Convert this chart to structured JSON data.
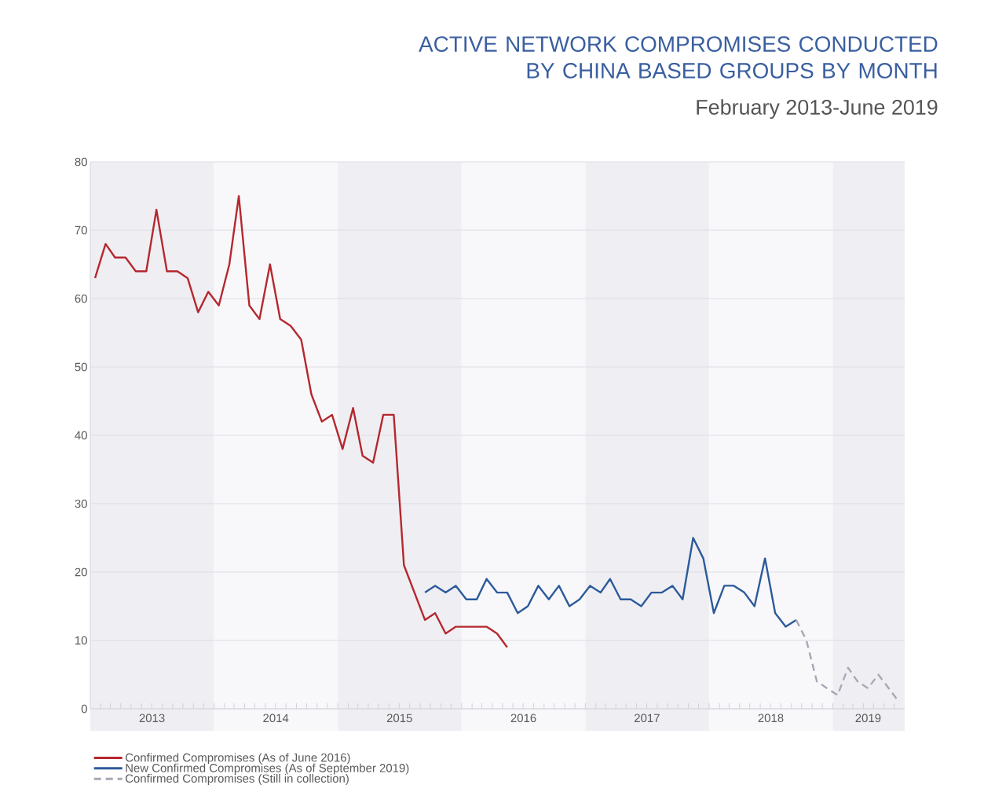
{
  "chart_data": {
    "type": "line",
    "title": "ACTIVE NETWORK COMPROMISES CONDUCTED BY CHINA BASED GROUPS BY MONTH",
    "subtitle": "February 2013-June 2019",
    "x": [
      "2013-01-15",
      "2013-02-15",
      "2013-03-15",
      "2013-04-15",
      "2013-05-15",
      "2013-06-15",
      "2013-07-15",
      "2013-08-15",
      "2013-09-15",
      "2013-10-15",
      "2013-11-15",
      "2013-12-15",
      "2014-01-15",
      "2014-02-15",
      "2014-03-15",
      "2014-04-15",
      "2014-05-15",
      "2014-06-15",
      "2014-07-15",
      "2014-08-15",
      "2014-09-15",
      "2014-10-15",
      "2014-11-15",
      "2014-12-15",
      "2015-01-15",
      "2015-02-15",
      "2015-03-15",
      "2015-04-15",
      "2015-05-15",
      "2015-06-15",
      "2015-07-15",
      "2015-08-15",
      "2015-09-15",
      "2015-10-15",
      "2015-11-15",
      "2015-12-15",
      "2016-01-15",
      "2016-02-15",
      "2016-03-15",
      "2016-04-15",
      "2016-05-15",
      "2016-06-15",
      "2016-07-15",
      "2016-08-15",
      "2016-09-15",
      "2016-10-15",
      "2016-11-15",
      "2016-12-15",
      "2017-01-15",
      "2017-02-15",
      "2017-03-15",
      "2017-04-15",
      "2017-05-15",
      "2017-06-15",
      "2017-07-15",
      "2017-08-15",
      "2017-09-15",
      "2017-10-15",
      "2017-11-15",
      "2017-12-15",
      "2018-01-15",
      "2018-02-15",
      "2018-03-15",
      "2018-04-15",
      "2018-05-15",
      "2018-06-15",
      "2018-07-15",
      "2018-08-15",
      "2018-09-15",
      "2018-10-15",
      "2018-11-15",
      "2018-12-15",
      "2019-01-15",
      "2019-02-15",
      "2019-03-15",
      "2019-04-15",
      "2019-05-15",
      "2019-06-15",
      "2019-07-15"
    ],
    "series": [
      {
        "name": "Confirmed Compromises (As of June 2016)",
        "color": "#b5282e",
        "line_style": "solid",
        "values": [
          63,
          68,
          66,
          66,
          64,
          64,
          73,
          64,
          64,
          63,
          58,
          61,
          59,
          65,
          75,
          59,
          57,
          65,
          57,
          56,
          54,
          46,
          42,
          43,
          38,
          44,
          37,
          36,
          43,
          43,
          21,
          17,
          13,
          14,
          11,
          12,
          12,
          12,
          12,
          11,
          9,
          null,
          null,
          null,
          null,
          null,
          null,
          null,
          null,
          null,
          null,
          null,
          null,
          null,
          null,
          null,
          null,
          null,
          null,
          null,
          null,
          null,
          null,
          null,
          null,
          null,
          null,
          null,
          null,
          null,
          null,
          null,
          null,
          null,
          null,
          null,
          null,
          null,
          null
        ]
      },
      {
        "name": "New Confirmed Compromises (As of September 2019)",
        "color": "#2c5a9a",
        "line_style": "solid",
        "values": [
          null,
          null,
          null,
          null,
          null,
          null,
          null,
          null,
          null,
          null,
          null,
          null,
          null,
          null,
          null,
          null,
          null,
          null,
          null,
          null,
          null,
          null,
          null,
          null,
          null,
          null,
          null,
          null,
          null,
          null,
          null,
          null,
          17,
          18,
          17,
          18,
          16,
          16,
          19,
          17,
          17,
          14,
          15,
          18,
          16,
          18,
          15,
          16,
          18,
          17,
          19,
          16,
          16,
          15,
          17,
          17,
          18,
          16,
          25,
          22,
          14,
          18,
          18,
          17,
          15,
          22,
          14,
          12,
          13,
          null,
          null,
          null,
          null,
          null,
          null,
          null,
          null,
          null,
          null
        ]
      },
      {
        "name": "Confirmed Compromises (Still in collection)",
        "color": "#a7a9b4",
        "line_style": "dashed",
        "values": [
          null,
          null,
          null,
          null,
          null,
          null,
          null,
          null,
          null,
          null,
          null,
          null,
          null,
          null,
          null,
          null,
          null,
          null,
          null,
          null,
          null,
          null,
          null,
          null,
          null,
          null,
          null,
          null,
          null,
          null,
          null,
          null,
          null,
          null,
          null,
          null,
          null,
          null,
          null,
          null,
          null,
          null,
          null,
          null,
          null,
          null,
          null,
          null,
          null,
          null,
          null,
          null,
          null,
          null,
          null,
          null,
          null,
          null,
          null,
          null,
          null,
          null,
          null,
          null,
          null,
          null,
          null,
          null,
          13,
          10,
          4,
          3,
          2,
          6,
          4,
          3,
          5,
          3,
          1
        ]
      }
    ],
    "xlim": [
      "2013-01-01",
      "2019-08-01"
    ],
    "xticks": [
      {
        "value": "2013-02-01",
        "label": null
      },
      {
        "value": "2013-03-01",
        "label": null
      },
      {
        "value": "2013-04-01",
        "label": null
      },
      {
        "value": "2013-05-01",
        "label": null
      },
      {
        "value": "2013-06-01",
        "label": null
      },
      {
        "value": "2013-07-01",
        "label": null
      },
      {
        "value": "2013-08-01",
        "label": null
      },
      {
        "value": "2013-09-01",
        "label": null
      },
      {
        "value": "2013-10-01",
        "label": null
      },
      {
        "value": "2013-11-01",
        "label": null
      },
      {
        "value": "2013-12-01",
        "label": null
      },
      {
        "value": "2014-01-01",
        "label": null
      },
      {
        "value": "2014-02-01",
        "label": null
      },
      {
        "value": "2014-03-01",
        "label": null
      },
      {
        "value": "2014-04-01",
        "label": null
      },
      {
        "value": "2014-05-01",
        "label": null
      },
      {
        "value": "2014-06-01",
        "label": null
      },
      {
        "value": "2014-07-01",
        "label": null
      },
      {
        "value": "2014-08-01",
        "label": null
      },
      {
        "value": "2014-09-01",
        "label": null
      },
      {
        "value": "2014-10-01",
        "label": null
      },
      {
        "value": "2014-11-01",
        "label": null
      },
      {
        "value": "2014-12-01",
        "label": null
      },
      {
        "value": "2015-01-01",
        "label": null
      },
      {
        "value": "2015-02-01",
        "label": null
      },
      {
        "value": "2015-03-01",
        "label": null
      },
      {
        "value": "2015-04-01",
        "label": null
      },
      {
        "value": "2015-05-01",
        "label": null
      },
      {
        "value": "2015-06-01",
        "label": null
      },
      {
        "value": "2015-07-01",
        "label": null
      },
      {
        "value": "2015-08-01",
        "label": null
      },
      {
        "value": "2015-09-01",
        "label": null
      },
      {
        "value": "2015-10-01",
        "label": null
      },
      {
        "value": "2015-11-01",
        "label": null
      },
      {
        "value": "2015-12-01",
        "label": null
      },
      {
        "value": "2016-01-01",
        "label": null
      },
      {
        "value": "2016-02-01",
        "label": null
      },
      {
        "value": "2016-03-01",
        "label": null
      },
      {
        "value": "2016-04-01",
        "label": null
      },
      {
        "value": "2016-05-01",
        "label": null
      },
      {
        "value": "2016-06-01",
        "label": null
      },
      {
        "value": "2016-07-01",
        "label": null
      },
      {
        "value": "2016-08-01",
        "label": null
      },
      {
        "value": "2016-09-01",
        "label": null
      },
      {
        "value": "2016-10-01",
        "label": null
      },
      {
        "value": "2016-11-01",
        "label": null
      },
      {
        "value": "2016-12-01",
        "label": null
      },
      {
        "value": "2017-01-01",
        "label": null
      },
      {
        "value": "2017-02-01",
        "label": null
      },
      {
        "value": "2017-03-01",
        "label": null
      },
      {
        "value": "2017-04-01",
        "label": null
      },
      {
        "value": "2017-05-01",
        "label": null
      },
      {
        "value": "2017-06-01",
        "label": null
      },
      {
        "value": "2017-07-01",
        "label": null
      },
      {
        "value": "2017-08-01",
        "label": null
      },
      {
        "value": "2017-09-01",
        "label": null
      },
      {
        "value": "2017-10-01",
        "label": null
      },
      {
        "value": "2017-11-01",
        "label": null
      },
      {
        "value": "2017-12-01",
        "label": null
      },
      {
        "value": "2018-01-01",
        "label": null
      },
      {
        "value": "2018-02-01",
        "label": null
      },
      {
        "value": "2018-03-01",
        "label": null
      },
      {
        "value": "2018-04-01",
        "label": null
      },
      {
        "value": "2018-05-01",
        "label": null
      },
      {
        "value": "2018-06-01",
        "label": null
      },
      {
        "value": "2018-07-01",
        "label": null
      },
      {
        "value": "2018-08-01",
        "label": null
      },
      {
        "value": "2018-09-01",
        "label": null
      },
      {
        "value": "2018-10-01",
        "label": null
      },
      {
        "value": "2018-11-01",
        "label": null
      },
      {
        "value": "2018-12-01",
        "label": null
      },
      {
        "value": "2019-01-01",
        "label": null
      },
      {
        "value": "2019-02-01",
        "label": null
      },
      {
        "value": "2019-03-01",
        "label": null
      },
      {
        "value": "2019-04-01",
        "label": null
      },
      {
        "value": "2019-05-01",
        "label": null
      },
      {
        "value": "2019-06-01",
        "label": null
      },
      {
        "value": "2019-07-01",
        "label": null
      },
      {
        "value": "2013-07-02",
        "label": "2013"
      },
      {
        "value": "2014-07-02",
        "label": "2014"
      },
      {
        "value": "2015-07-02",
        "label": "2015"
      },
      {
        "value": "2016-07-02",
        "label": "2016"
      },
      {
        "value": "2017-07-02",
        "label": "2017"
      },
      {
        "value": "2018-07-02",
        "label": "2018"
      },
      {
        "value": "2019-04-15",
        "label": "2019"
      }
    ],
    "ylim": [
      0,
      80
    ],
    "yticks": [
      0,
      10,
      20,
      30,
      40,
      50,
      60,
      70,
      80
    ],
    "grid": "y",
    "legend": "bottom",
    "marker": "none",
    "bands": [
      {
        "axis": "x",
        "from": "2013-01-01",
        "to": "2014-01-01",
        "color": "#efeff3"
      },
      {
        "axis": "x",
        "from": "2014-01-01",
        "to": "2015-01-01",
        "color": "#f8f8fa"
      },
      {
        "axis": "x",
        "from": "2015-01-01",
        "to": "2016-01-01",
        "color": "#efeff3"
      },
      {
        "axis": "x",
        "from": "2016-01-01",
        "to": "2017-01-01",
        "color": "#f8f8fa"
      },
      {
        "axis": "x",
        "from": "2017-01-01",
        "to": "2018-01-01",
        "color": "#efeff3"
      },
      {
        "axis": "x",
        "from": "2018-01-01",
        "to": "2019-01-01",
        "color": "#f8f8fa"
      },
      {
        "axis": "x",
        "from": "2019-01-01",
        "to": "2019-08-01",
        "color": "#efeff3"
      }
    ]
  }
}
